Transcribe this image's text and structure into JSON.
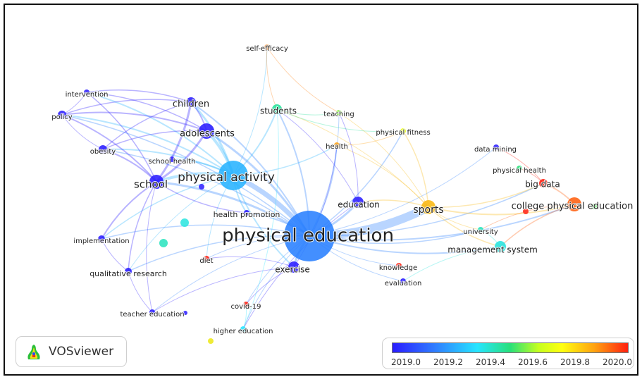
{
  "app": {
    "name": "VOSviewer",
    "logo_icon": "vosviewer-logo-icon"
  },
  "legend": {
    "ticks": [
      "2019.0",
      "2019.2",
      "2019.4",
      "2019.6",
      "2019.8",
      "2020.0"
    ],
    "colors": [
      "#2a1cff",
      "#27e5ff",
      "#28e07a",
      "#ffff10",
      "#ffa010",
      "#ff2010"
    ]
  },
  "network": {
    "nodes": [
      {
        "id": "physical education",
        "year": 2019.1
      },
      {
        "id": "physical activity",
        "year": 2019.15
      },
      {
        "id": "sports",
        "year": 2019.75
      },
      {
        "id": "college physical education",
        "year": 2019.9
      },
      {
        "id": "school",
        "year": 2019.0
      },
      {
        "id": "adolescents",
        "year": 2019.0
      },
      {
        "id": "children",
        "year": 2019.0
      },
      {
        "id": "students",
        "year": 2019.35
      },
      {
        "id": "exercise",
        "year": 2019.0
      },
      {
        "id": "education",
        "year": 2019.0
      },
      {
        "id": "big data",
        "year": 2020.0
      },
      {
        "id": "management system",
        "year": 2019.25
      },
      {
        "id": "self-efficacy",
        "year": 2019.85
      },
      {
        "id": "teaching",
        "year": 2019.5
      },
      {
        "id": "physical fitness",
        "year": 2019.6
      },
      {
        "id": "health",
        "year": 2019.8
      },
      {
        "id": "data mining",
        "year": 2019.0
      },
      {
        "id": "physical health",
        "year": 2019.4
      },
      {
        "id": "university",
        "year": 2019.3
      },
      {
        "id": "knowledge",
        "year": 2020.0
      },
      {
        "id": "evaluation",
        "year": 2019.0
      },
      {
        "id": "intervention",
        "year": 2019.0
      },
      {
        "id": "policy",
        "year": 2019.0
      },
      {
        "id": "obesity",
        "year": 2019.0
      },
      {
        "id": "school health",
        "year": 2019.0
      },
      {
        "id": "health promotion",
        "year": 2019.0
      },
      {
        "id": "implementation",
        "year": 2019.0
      },
      {
        "id": "qualitative research",
        "year": 2019.0
      },
      {
        "id": "diet",
        "year": 2020.0
      },
      {
        "id": "covid-19",
        "year": 2020.0
      },
      {
        "id": "teacher education",
        "year": 2019.0
      },
      {
        "id": "higher education",
        "year": 2019.2
      }
    ]
  }
}
